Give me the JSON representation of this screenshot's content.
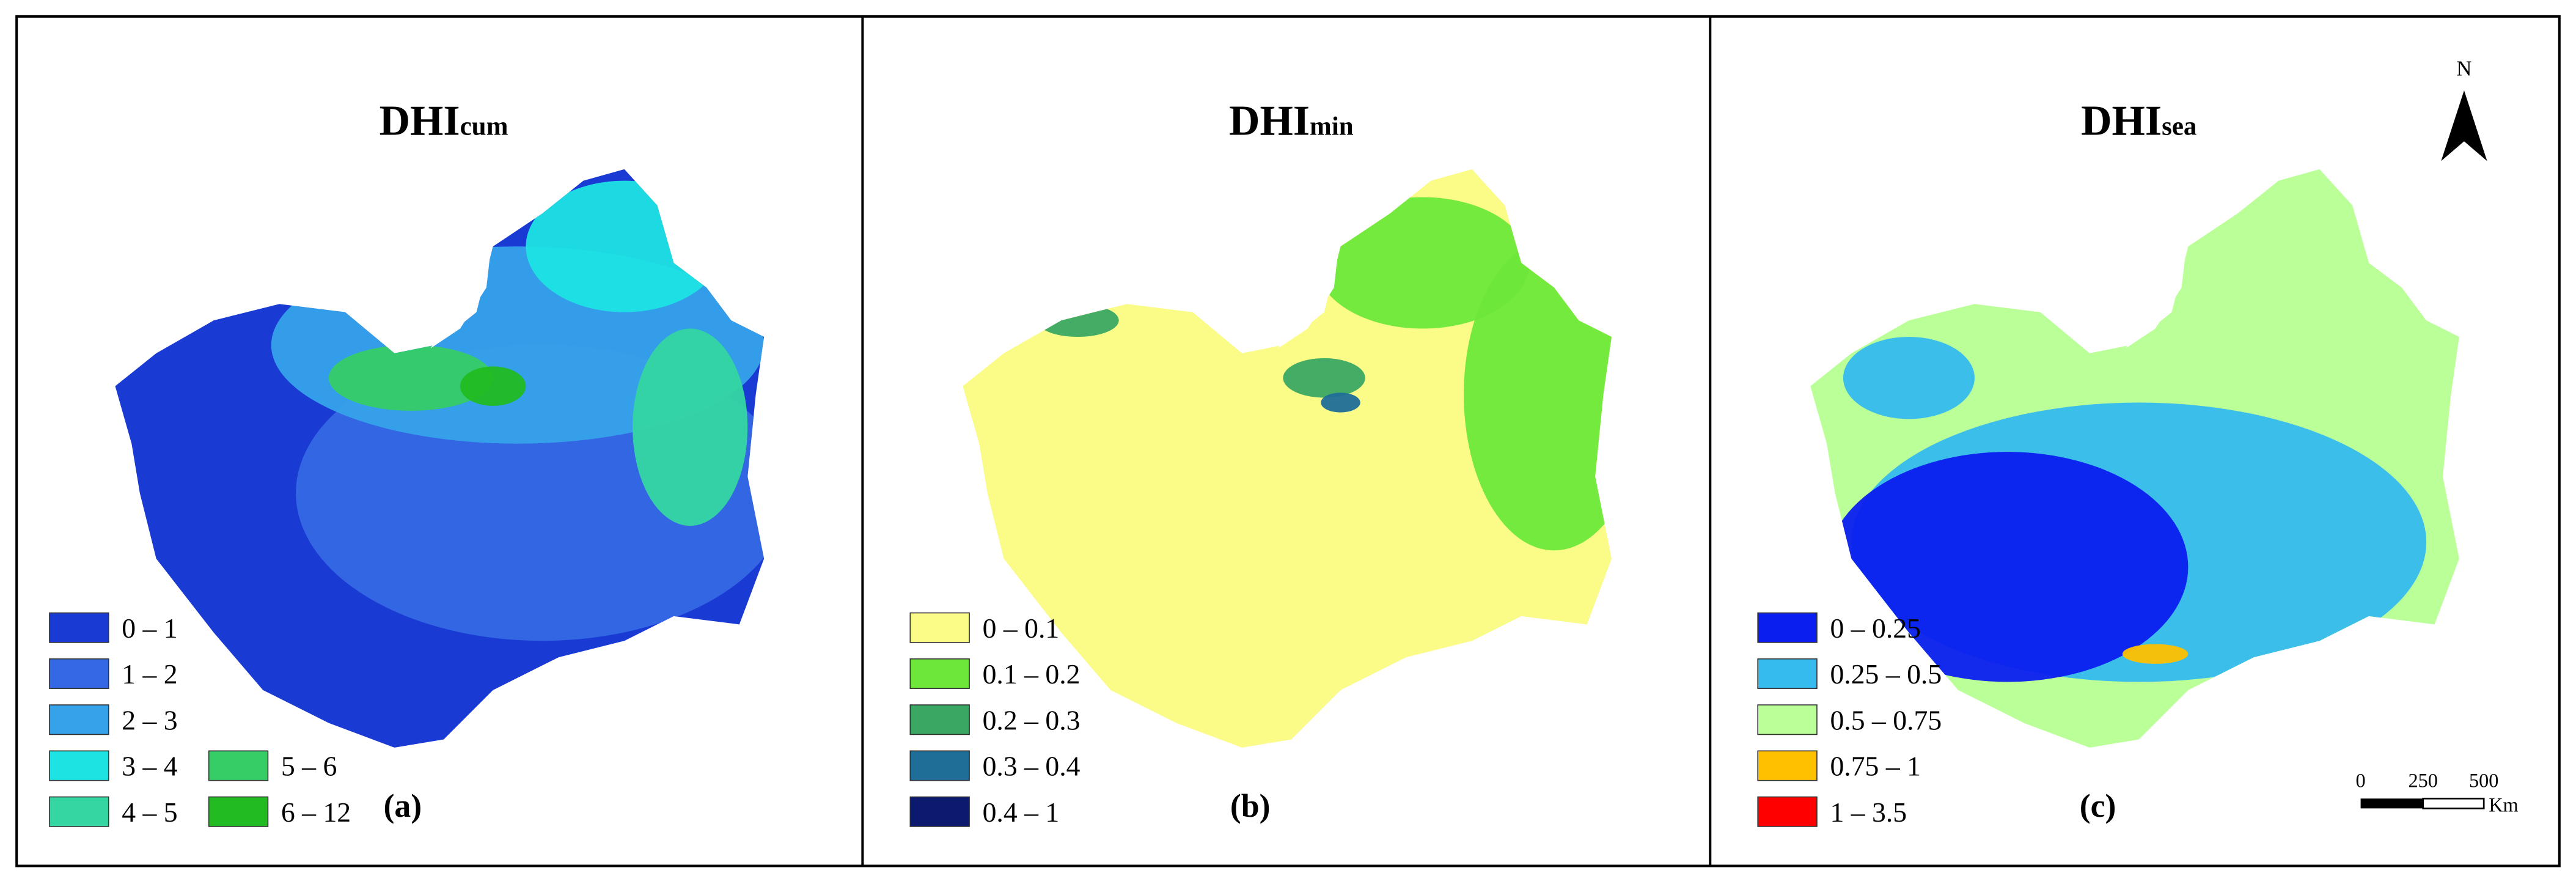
{
  "panels": [
    {
      "title": "DHI",
      "title_sub": "cum",
      "label": "(a)",
      "legend": [
        {
          "label": "0 – 1",
          "color": "#1a3ad4"
        },
        {
          "label": "1 – 2",
          "color": "#3568e4"
        },
        {
          "label": "2 – 3",
          "color": "#36a2ea"
        },
        {
          "label": "3 – 4",
          "color": "#1ee3e3"
        },
        {
          "label": "4 – 5",
          "color": "#35d6a2"
        },
        {
          "label": "5 – 6",
          "color": "#36cc66"
        },
        {
          "label": "6 – 12",
          "color": "#22bb22"
        }
      ]
    },
    {
      "title": "DHI",
      "title_sub": "min",
      "label": "(b)",
      "legend": [
        {
          "label": "0 – 0.1",
          "color": "#fbfb88"
        },
        {
          "label": "0.1 – 0.2",
          "color": "#6de83a"
        },
        {
          "label": "0.2 – 0.3",
          "color": "#3aa862"
        },
        {
          "label": "0.3 – 0.4",
          "color": "#1f6e98"
        },
        {
          "label": "0.4 – 1",
          "color": "#0b1a6e"
        }
      ]
    },
    {
      "title": "DHI",
      "title_sub": "sea",
      "label": "(c)",
      "legend": [
        {
          "label": "0 – 0.25",
          "color": "#0a1ef0"
        },
        {
          "label": "0.25 – 0.5",
          "color": "#35bbee"
        },
        {
          "label": "0.5 – 0.75",
          "color": "#bbff99"
        },
        {
          "label": "0.75 – 1",
          "color": "#ffc000"
        },
        {
          "label": "1 – 3.5",
          "color": "#ff0000"
        }
      ]
    }
  ],
  "north": "N",
  "scale_bar": {
    "ticks": [
      "0",
      "250",
      "500"
    ],
    "unit": "Km"
  }
}
